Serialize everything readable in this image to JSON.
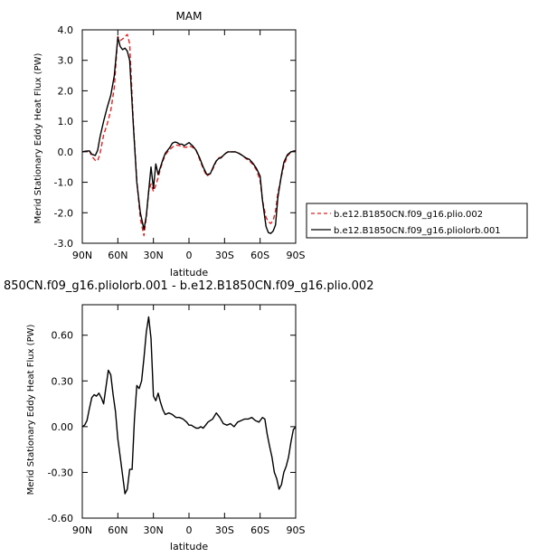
{
  "chart_data": [
    {
      "type": "line",
      "title": "MAM",
      "xlabel": "latitude",
      "ylabel": "Merid Stationary Eddy Heat Flux (PW)",
      "xlim": [
        90,
        -90
      ],
      "ylim": [
        -3.0,
        4.0
      ],
      "xticks": [
        90,
        60,
        30,
        0,
        -30,
        -60,
        -90
      ],
      "xticklabels": [
        "90N",
        "60N",
        "30N",
        "0",
        "30S",
        "60S",
        "90S"
      ],
      "yticks": [
        -3.0,
        -2.0,
        -1.0,
        0.0,
        1.0,
        2.0,
        3.0,
        4.0
      ],
      "yticklabels": [
        "-3.0",
        "-2.0",
        "-1.0",
        "0.0",
        "1.0",
        "2.0",
        "3.0",
        "4.0"
      ],
      "legend": {
        "placement": "right, outside plot"
      },
      "series": [
        {
          "name": "b.e12.B1850CN.f09_g16.plio.002",
          "color": "#dd2222",
          "dash": "dashed",
          "x": [
            90,
            87,
            84,
            82,
            79,
            77,
            75,
            72,
            69,
            66,
            63,
            60,
            58,
            56,
            54,
            52,
            50,
            47,
            44,
            41,
            38,
            36,
            34,
            32,
            30,
            28,
            26,
            24,
            22,
            20,
            18,
            16,
            14,
            12,
            10,
            8,
            6,
            4,
            2,
            0,
            -3,
            -6,
            -9,
            -12,
            -15,
            -18,
            -21,
            -23,
            -25,
            -27,
            -29,
            -31,
            -33,
            -36,
            -39,
            -42,
            -45,
            -48,
            -51,
            -54,
            -57,
            -60,
            -62,
            -65,
            -67,
            -69,
            -71,
            -73,
            -75,
            -78,
            -80,
            -83,
            -86,
            -88,
            -90
          ],
          "values": [
            0.0,
            0.02,
            0.03,
            -0.15,
            -0.28,
            -0.3,
            -0.05,
            0.55,
            0.9,
            1.35,
            2.1,
            3.78,
            3.65,
            3.7,
            3.78,
            3.85,
            3.55,
            1.0,
            -0.95,
            -2.2,
            -2.75,
            -2.15,
            -1.3,
            -1.05,
            -1.3,
            -1.1,
            -0.85,
            -0.55,
            -0.3,
            -0.1,
            0.0,
            0.08,
            0.15,
            0.2,
            0.22,
            0.2,
            0.18,
            0.15,
            0.15,
            0.2,
            0.15,
            0.05,
            -0.25,
            -0.55,
            -0.8,
            -0.72,
            -0.5,
            -0.3,
            -0.2,
            -0.18,
            -0.12,
            -0.05,
            0.0,
            0.0,
            0.0,
            -0.05,
            -0.12,
            -0.22,
            -0.3,
            -0.42,
            -0.6,
            -0.95,
            -1.6,
            -2.15,
            -2.3,
            -2.35,
            -2.25,
            -1.95,
            -1.35,
            -0.8,
            -0.45,
            -0.15,
            0.0,
            0.02,
            0.03
          ]
        },
        {
          "name": "b.e12.B1850CN.f09_g16.pliolorb.001",
          "color": "#000000",
          "dash": "solid",
          "x": [
            90,
            87,
            84,
            82,
            79,
            77,
            75,
            72,
            69,
            66,
            63,
            60,
            58,
            56,
            54,
            52,
            50,
            47,
            44,
            41,
            38,
            36,
            34,
            32,
            30,
            28,
            26,
            24,
            22,
            20,
            18,
            16,
            14,
            12,
            10,
            8,
            6,
            4,
            2,
            0,
            -3,
            -6,
            -9,
            -12,
            -15,
            -18,
            -21,
            -23,
            -25,
            -27,
            -29,
            -31,
            -33,
            -36,
            -39,
            -42,
            -45,
            -48,
            -51,
            -54,
            -57,
            -60,
            -62,
            -65,
            -67,
            -69,
            -71,
            -73,
            -75,
            -78,
            -80,
            -83,
            -86,
            -88,
            -90
          ],
          "values": [
            0.0,
            0.02,
            0.03,
            -0.08,
            -0.12,
            0.05,
            0.5,
            1.0,
            1.45,
            1.85,
            2.5,
            3.75,
            3.45,
            3.35,
            3.4,
            3.3,
            3.0,
            0.9,
            -1.0,
            -2.0,
            -2.55,
            -2.1,
            -1.3,
            -0.5,
            -1.2,
            -0.4,
            -0.75,
            -0.5,
            -0.25,
            -0.05,
            0.05,
            0.15,
            0.28,
            0.32,
            0.3,
            0.25,
            0.25,
            0.2,
            0.25,
            0.3,
            0.2,
            0.05,
            -0.2,
            -0.5,
            -0.75,
            -0.72,
            -0.45,
            -0.3,
            -0.22,
            -0.2,
            -0.12,
            -0.05,
            0.0,
            0.0,
            0.0,
            -0.05,
            -0.12,
            -0.2,
            -0.25,
            -0.38,
            -0.55,
            -0.8,
            -1.6,
            -2.45,
            -2.65,
            -2.68,
            -2.6,
            -2.4,
            -1.5,
            -0.75,
            -0.35,
            -0.1,
            0.0,
            0.02,
            0.03
          ]
        }
      ]
    },
    {
      "type": "line",
      "title": "850CN.f09_g16.pliolorb.001 - b.e12.B1850CN.f09_g16.plio.002",
      "xlabel": "latitude",
      "ylabel": "Merid Stationary Eddy Heat Flux (PW)",
      "xlim": [
        90,
        -90
      ],
      "ylim": [
        -0.6,
        0.8
      ],
      "xticks": [
        90,
        60,
        30,
        0,
        -30,
        -60,
        -90
      ],
      "xticklabels": [
        "90N",
        "60N",
        "30N",
        "0",
        "30S",
        "60S",
        "90S"
      ],
      "yticks": [
        -0.6,
        -0.3,
        0.0,
        0.3,
        0.6
      ],
      "yticklabels": [
        "-0.60",
        "-0.30",
        "0.00",
        "0.30",
        "0.60"
      ],
      "series": [
        {
          "color": "#000000",
          "dash": "solid",
          "x": [
            90,
            88,
            86,
            84,
            82,
            80,
            78,
            76,
            74,
            72,
            70,
            68,
            66,
            64,
            62,
            60,
            58,
            56,
            54,
            52,
            50,
            48,
            46,
            44,
            42,
            40,
            38,
            36,
            34,
            32,
            30,
            28,
            26,
            24,
            22,
            20,
            17,
            14,
            11,
            8,
            5,
            2,
            0,
            -2,
            -4,
            -6,
            -8,
            -10,
            -12,
            -14,
            -16,
            -18,
            -20,
            -23,
            -26,
            -29,
            -32,
            -35,
            -38,
            -41,
            -44,
            -47,
            -50,
            -53,
            -56,
            -59,
            -62,
            -64,
            -66,
            -68,
            -70,
            -72,
            -74,
            -76,
            -78,
            -80,
            -82,
            -84,
            -86,
            -88,
            -90
          ],
          "values": [
            0.0,
            0.01,
            0.04,
            0.12,
            0.19,
            0.21,
            0.2,
            0.22,
            0.19,
            0.15,
            0.26,
            0.37,
            0.34,
            0.21,
            0.1,
            -0.08,
            -0.2,
            -0.32,
            -0.44,
            -0.41,
            -0.28,
            -0.28,
            0.05,
            0.27,
            0.25,
            0.3,
            0.45,
            0.62,
            0.72,
            0.58,
            0.2,
            0.17,
            0.22,
            0.16,
            0.11,
            0.08,
            0.09,
            0.08,
            0.06,
            0.06,
            0.05,
            0.03,
            0.01,
            0.01,
            0.0,
            -0.01,
            -0.01,
            0.0,
            -0.01,
            0.01,
            0.03,
            0.04,
            0.05,
            0.09,
            0.06,
            0.02,
            0.01,
            0.02,
            0.0,
            0.03,
            0.04,
            0.05,
            0.05,
            0.06,
            0.04,
            0.03,
            0.06,
            0.05,
            -0.05,
            -0.13,
            -0.2,
            -0.3,
            -0.34,
            -0.41,
            -0.38,
            -0.3,
            -0.26,
            -0.2,
            -0.1,
            -0.02,
            0.0
          ]
        }
      ]
    }
  ]
}
